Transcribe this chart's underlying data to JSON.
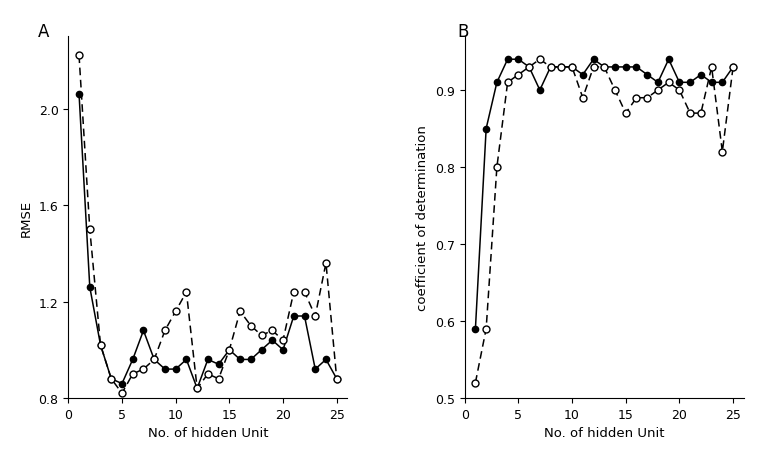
{
  "x": [
    1,
    2,
    3,
    4,
    5,
    6,
    7,
    8,
    9,
    10,
    11,
    12,
    13,
    14,
    15,
    16,
    17,
    18,
    19,
    20,
    21,
    22,
    23,
    24,
    25
  ],
  "rmse_logistic": [
    2.06,
    1.26,
    1.02,
    0.88,
    0.86,
    0.96,
    1.08,
    0.96,
    0.92,
    0.92,
    0.96,
    0.84,
    0.96,
    0.94,
    1.0,
    0.96,
    0.96,
    1.0,
    1.04,
    1.0,
    1.14,
    1.14,
    0.92,
    0.96,
    0.88
  ],
  "rmse_tanh": [
    2.22,
    1.5,
    1.02,
    0.88,
    0.82,
    0.9,
    0.92,
    0.96,
    1.08,
    1.16,
    1.24,
    0.84,
    0.9,
    0.88,
    1.0,
    1.16,
    1.1,
    1.06,
    1.08,
    1.04,
    1.24,
    1.24,
    1.14,
    1.36,
    0.88
  ],
  "r2_logistic": [
    0.59,
    0.85,
    0.91,
    0.94,
    0.94,
    0.93,
    0.9,
    0.93,
    0.93,
    0.93,
    0.92,
    0.94,
    0.93,
    0.93,
    0.93,
    0.93,
    0.92,
    0.91,
    0.94,
    0.91,
    0.91,
    0.92,
    0.91,
    0.91,
    0.93
  ],
  "r2_tanh": [
    0.52,
    0.59,
    0.8,
    0.91,
    0.92,
    0.93,
    0.94,
    0.93,
    0.93,
    0.93,
    0.89,
    0.93,
    0.93,
    0.9,
    0.87,
    0.89,
    0.89,
    0.9,
    0.91,
    0.9,
    0.87,
    0.87,
    0.93,
    0.82,
    0.93
  ],
  "xlabel": "No. of hidden Unit",
  "ylabel_A": "RMSE",
  "ylabel_B": "coefficient of determination",
  "label_A": "A",
  "label_B": "B",
  "ylim_A": [
    0.8,
    2.3
  ],
  "ylim_B": [
    0.5,
    0.97
  ],
  "yticks_A": [
    0.8,
    1.2,
    1.6,
    2.0
  ],
  "yticks_B": [
    0.5,
    0.6,
    0.7,
    0.8,
    0.9
  ],
  "xlim": [
    0,
    26
  ],
  "xticks": [
    0,
    5,
    10,
    15,
    20,
    25
  ]
}
